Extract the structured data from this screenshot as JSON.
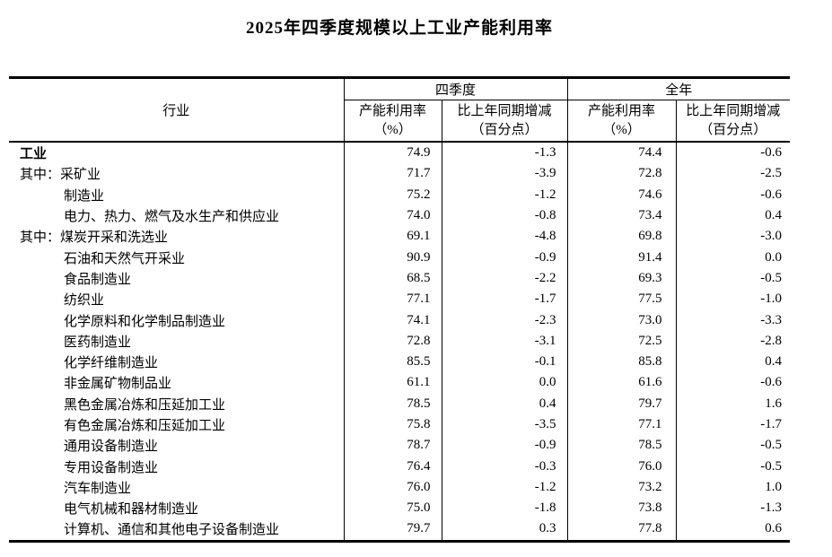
{
  "title": "2025年四季度规模以上工业产能利用率",
  "table": {
    "industry_header": "行业",
    "group_q4": "四季度",
    "group_year": "全年",
    "sub_rate_line1": "产能利用率",
    "sub_rate_line2": "（%）",
    "sub_diff_line1": "比上年同期增减",
    "sub_diff_line2": "（百分点）",
    "rows": [
      {
        "label": "工业",
        "bold": true,
        "indent": 0,
        "q4_rate": "74.9",
        "q4_diff": "-1.3",
        "yr_rate": "74.4",
        "yr_diff": "-0.6"
      },
      {
        "label": "其中：采矿业",
        "bold": false,
        "indent": 0,
        "q4_rate": "71.7",
        "q4_diff": "-3.9",
        "yr_rate": "72.8",
        "yr_diff": "-2.5"
      },
      {
        "label": "制造业",
        "bold": false,
        "indent": 1,
        "q4_rate": "75.2",
        "q4_diff": "-1.2",
        "yr_rate": "74.6",
        "yr_diff": "-0.6"
      },
      {
        "label": "电力、热力、燃气及水生产和供应业",
        "bold": false,
        "indent": 1,
        "q4_rate": "74.0",
        "q4_diff": "-0.8",
        "yr_rate": "73.4",
        "yr_diff": "0.4"
      },
      {
        "label": "其中：煤炭开采和洗选业",
        "bold": false,
        "indent": 0,
        "q4_rate": "69.1",
        "q4_diff": "-4.8",
        "yr_rate": "69.8",
        "yr_diff": "-3.0"
      },
      {
        "label": "石油和天然气开采业",
        "bold": false,
        "indent": 1,
        "q4_rate": "90.9",
        "q4_diff": "-0.9",
        "yr_rate": "91.4",
        "yr_diff": "0.0"
      },
      {
        "label": "食品制造业",
        "bold": false,
        "indent": 1,
        "q4_rate": "68.5",
        "q4_diff": "-2.2",
        "yr_rate": "69.3",
        "yr_diff": "-0.5"
      },
      {
        "label": "纺织业",
        "bold": false,
        "indent": 1,
        "q4_rate": "77.1",
        "q4_diff": "-1.7",
        "yr_rate": "77.5",
        "yr_diff": "-1.0"
      },
      {
        "label": "化学原料和化学制品制造业",
        "bold": false,
        "indent": 1,
        "q4_rate": "74.1",
        "q4_diff": "-2.3",
        "yr_rate": "73.0",
        "yr_diff": "-3.3"
      },
      {
        "label": "医药制造业",
        "bold": false,
        "indent": 1,
        "q4_rate": "72.8",
        "q4_diff": "-3.1",
        "yr_rate": "72.5",
        "yr_diff": "-2.8"
      },
      {
        "label": "化学纤维制造业",
        "bold": false,
        "indent": 1,
        "q4_rate": "85.5",
        "q4_diff": "-0.1",
        "yr_rate": "85.8",
        "yr_diff": "0.4"
      },
      {
        "label": "非金属矿物制品业",
        "bold": false,
        "indent": 1,
        "q4_rate": "61.1",
        "q4_diff": "0.0",
        "yr_rate": "61.6",
        "yr_diff": "-0.6"
      },
      {
        "label": "黑色金属冶炼和压延加工业",
        "bold": false,
        "indent": 1,
        "q4_rate": "78.5",
        "q4_diff": "0.4",
        "yr_rate": "79.7",
        "yr_diff": "1.6"
      },
      {
        "label": "有色金属冶炼和压延加工业",
        "bold": false,
        "indent": 1,
        "q4_rate": "75.8",
        "q4_diff": "-3.5",
        "yr_rate": "77.1",
        "yr_diff": "-1.7"
      },
      {
        "label": "通用设备制造业",
        "bold": false,
        "indent": 1,
        "q4_rate": "78.7",
        "q4_diff": "-0.9",
        "yr_rate": "78.5",
        "yr_diff": "-0.5"
      },
      {
        "label": "专用设备制造业",
        "bold": false,
        "indent": 1,
        "q4_rate": "76.4",
        "q4_diff": "-0.3",
        "yr_rate": "76.0",
        "yr_diff": "-0.5"
      },
      {
        "label": "汽车制造业",
        "bold": false,
        "indent": 1,
        "q4_rate": "76.0",
        "q4_diff": "-1.2",
        "yr_rate": "73.2",
        "yr_diff": "1.0"
      },
      {
        "label": "电气机械和器材制造业",
        "bold": false,
        "indent": 1,
        "q4_rate": "75.0",
        "q4_diff": "-1.8",
        "yr_rate": "73.8",
        "yr_diff": "-1.3"
      },
      {
        "label": "计算机、通信和其他电子设备制造业",
        "bold": false,
        "indent": 1,
        "q4_rate": "79.7",
        "q4_diff": "0.3",
        "yr_rate": "77.8",
        "yr_diff": "0.6"
      }
    ]
  }
}
